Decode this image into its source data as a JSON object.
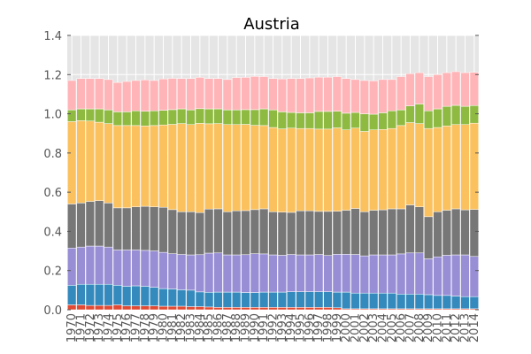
{
  "chart_data": {
    "type": "bar",
    "stacked": true,
    "title": "Austria",
    "xlabel": "",
    "ylabel": "",
    "ylim": [
      0,
      1.4
    ],
    "yticks": [
      "0.0",
      "0.2",
      "0.4",
      "0.6",
      "0.8",
      "1.0",
      "1.2",
      "1.4"
    ],
    "grid": true,
    "legend": "none",
    "categories": [
      "1970",
      "1971",
      "1972",
      "1973",
      "1974",
      "1975",
      "1976",
      "1977",
      "1978",
      "1979",
      "1980",
      "1981",
      "1982",
      "1983",
      "1984",
      "1985",
      "1986",
      "1987",
      "1988",
      "1989",
      "1990",
      "1991",
      "1992",
      "1993",
      "1994",
      "1995",
      "1996",
      "1997",
      "1998",
      "1999",
      "2000",
      "2001",
      "2002",
      "2003",
      "2004",
      "2005",
      "2006",
      "2007",
      "2008",
      "2009",
      "2010",
      "2011",
      "2012",
      "2013",
      "2014"
    ],
    "series": [
      {
        "color": "#e24a33",
        "values": [
          0.025,
          0.025,
          0.022,
          0.022,
          0.022,
          0.025,
          0.02,
          0.02,
          0.02,
          0.02,
          0.018,
          0.018,
          0.018,
          0.016,
          0.016,
          0.014,
          0.012,
          0.012,
          0.012,
          0.012,
          0.012,
          0.012,
          0.012,
          0.012,
          0.012,
          0.012,
          0.012,
          0.012,
          0.012,
          0.01,
          0.005,
          0.005,
          0.005,
          0.005,
          0.005,
          0.005,
          0.005,
          0.005,
          0.005,
          0.005,
          0.005,
          0.005,
          0.005,
          0.005,
          0.005
        ]
      },
      {
        "color": "#348abd",
        "values": [
          0.1,
          0.105,
          0.108,
          0.108,
          0.108,
          0.1,
          0.1,
          0.102,
          0.1,
          0.095,
          0.09,
          0.088,
          0.084,
          0.084,
          0.075,
          0.075,
          0.078,
          0.078,
          0.078,
          0.076,
          0.076,
          0.078,
          0.078,
          0.078,
          0.08,
          0.08,
          0.08,
          0.08,
          0.08,
          0.08,
          0.085,
          0.08,
          0.08,
          0.08,
          0.08,
          0.08,
          0.075,
          0.075,
          0.075,
          0.072,
          0.068,
          0.068,
          0.065,
          0.062,
          0.062
        ]
      },
      {
        "color": "#988ed5",
        "values": [
          0.19,
          0.19,
          0.195,
          0.195,
          0.19,
          0.18,
          0.185,
          0.183,
          0.183,
          0.185,
          0.185,
          0.18,
          0.18,
          0.18,
          0.19,
          0.2,
          0.2,
          0.19,
          0.19,
          0.193,
          0.198,
          0.195,
          0.19,
          0.188,
          0.19,
          0.188,
          0.188,
          0.19,
          0.185,
          0.193,
          0.193,
          0.197,
          0.19,
          0.195,
          0.195,
          0.195,
          0.205,
          0.21,
          0.21,
          0.183,
          0.197,
          0.205,
          0.21,
          0.213,
          0.205
        ]
      },
      {
        "color": "#777777",
        "values": [
          0.225,
          0.225,
          0.228,
          0.232,
          0.225,
          0.215,
          0.215,
          0.22,
          0.225,
          0.225,
          0.23,
          0.225,
          0.218,
          0.22,
          0.215,
          0.225,
          0.225,
          0.22,
          0.225,
          0.225,
          0.225,
          0.23,
          0.22,
          0.22,
          0.215,
          0.225,
          0.225,
          0.22,
          0.225,
          0.22,
          0.225,
          0.235,
          0.225,
          0.228,
          0.23,
          0.235,
          0.23,
          0.245,
          0.235,
          0.215,
          0.23,
          0.23,
          0.235,
          0.23,
          0.24
        ]
      },
      {
        "color": "#fbc15e",
        "values": [
          0.42,
          0.42,
          0.41,
          0.4,
          0.405,
          0.42,
          0.42,
          0.415,
          0.41,
          0.415,
          0.42,
          0.435,
          0.45,
          0.445,
          0.455,
          0.435,
          0.435,
          0.445,
          0.44,
          0.44,
          0.43,
          0.425,
          0.43,
          0.425,
          0.43,
          0.42,
          0.42,
          0.42,
          0.42,
          0.425,
          0.41,
          0.41,
          0.41,
          0.41,
          0.41,
          0.41,
          0.425,
          0.42,
          0.425,
          0.45,
          0.43,
          0.43,
          0.43,
          0.435,
          0.44
        ]
      },
      {
        "color": "#8eba42",
        "values": [
          0.06,
          0.06,
          0.062,
          0.068,
          0.07,
          0.07,
          0.07,
          0.075,
          0.075,
          0.075,
          0.075,
          0.075,
          0.075,
          0.075,
          0.075,
          0.076,
          0.075,
          0.075,
          0.075,
          0.075,
          0.08,
          0.085,
          0.09,
          0.087,
          0.08,
          0.08,
          0.08,
          0.09,
          0.09,
          0.085,
          0.085,
          0.08,
          0.09,
          0.08,
          0.085,
          0.09,
          0.08,
          0.085,
          0.1,
          0.09,
          0.095,
          0.1,
          0.098,
          0.093,
          0.09
        ]
      },
      {
        "color": "#ffb5b8",
        "values": [
          0.15,
          0.155,
          0.155,
          0.155,
          0.155,
          0.15,
          0.155,
          0.155,
          0.16,
          0.155,
          0.16,
          0.16,
          0.155,
          0.16,
          0.16,
          0.155,
          0.155,
          0.155,
          0.165,
          0.165,
          0.17,
          0.165,
          0.16,
          0.168,
          0.173,
          0.175,
          0.178,
          0.175,
          0.175,
          0.177,
          0.177,
          0.168,
          0.17,
          0.17,
          0.17,
          0.16,
          0.17,
          0.165,
          0.16,
          0.175,
          0.175,
          0.172,
          0.172,
          0.172,
          0.17
        ]
      }
    ]
  }
}
